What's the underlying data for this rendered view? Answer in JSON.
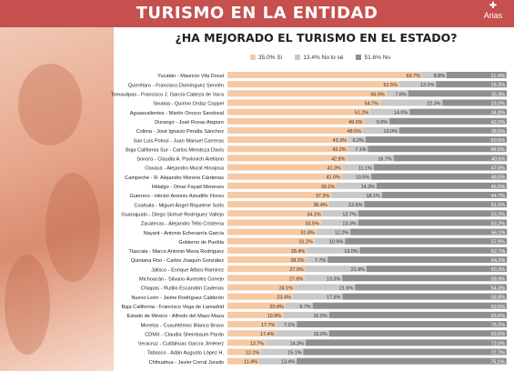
{
  "header": {
    "title": "TURISMO EN LA ENTIDAD",
    "logo_text": "Arias"
  },
  "colors": {
    "header": "#c5504e",
    "si": "#f6c9a3",
    "no_se": "#c9c9c9",
    "no": "#8f8f8f"
  },
  "chart_data": {
    "type": "bar",
    "stacked": true,
    "orientation": "horizontal",
    "title": "¿HA MEJORADO EL TURISMO EN EL ESTADO?",
    "legend": [
      "35.0% Sí",
      "13.4% No lo sé",
      "51.6% No"
    ],
    "legend_position": "top",
    "categories": [
      "Yucatán - Mauricio Vila Dosal",
      "Querétaro - Francisco Domínguez Servién",
      "Tamaulipas - Francisco J. García Cabeza de Vaca",
      "Sinaloa - Quirino Ordaz Coppel",
      "Aguascalientes - Martín Orozco Sandoval",
      "Durango - José Rosas Aispuro",
      "Colima - José Ignacio Peralta Sánchez",
      "San Luis Potosí - Juan Manuel Carreras",
      "Baja California Sur - Carlos Mendoza Davis",
      "Sonora - Claudia A. Pavlovich Arellano",
      "Oaxaca - Alejandro Murat Hinojosa",
      "Campeche - R. Alejandro Moreno Cárdenas",
      "Hidalgo - Omar Fayad Meneses",
      "Guerrero - Héctor Antonio Astudillo Flores",
      "Coahuila - Miguel Ángel Riquelme Solís",
      "Guanajuato - Diego Sinhué Rodríguez Vallejo",
      "Zacatecas - Alejandro Tello Cristerna",
      "Nayarit - Antonio Echevarría García",
      "Gobierno de Puebla",
      "Tlaxcala - Marco Antonio Mena Rodríguez",
      "Quintana Roo - Carlos Joaquín González",
      "Jalisco - Enrique Alfaro Ramírez",
      "Michoacán - Silvano Aureoles Conejo",
      "Chiapas - Rutilio Escandón Cadenas",
      "Nuevo León - Jaime Rodríguez Calderón",
      "Baja California - Francisco Vega de Lamadrid",
      "Estado de México - Alfredo del Mazo Maza",
      "Morelos - Cuauhtémoc Blanco Bravo",
      "CDMX - Claudia Sheinbaum Pardo",
      "Veracruz - Cuitláhuac García Jiménez",
      "Tabasco - Adán Augusto López H.",
      "Chihuahua - Javier Corral Jurado"
    ],
    "series": [
      {
        "name": "Sí",
        "values": [
          69.7,
          61.5,
          56.9,
          54.7,
          51.2,
          49.0,
          48.5,
          43.3,
          43.2,
          42.8,
          41.3,
          41.0,
          39.1,
          37.2,
          36.4,
          34.1,
          33.5,
          31.8,
          31.2,
          28.4,
          28.2,
          27.9,
          27.8,
          24.1,
          23.4,
          20.8,
          19.9,
          17.7,
          17.4,
          13.7,
          12.1,
          11.4
        ]
      },
      {
        "name": "No lo sé",
        "values": [
          8.8,
          13.2,
          7.8,
          22.3,
          14.0,
          9.0,
          13.0,
          6.2,
          7.1,
          16.7,
          11.1,
          10.5,
          14.3,
          18.1,
          12.6,
          12.7,
          13.3,
          12.2,
          10.9,
          19.0,
          7.7,
          21.9,
          13.3,
          21.6,
          17.8,
          9.7,
          16.5,
          7.1,
          19.0,
          14.3,
          15.1,
          13.4
        ]
      },
      {
        "name": "No",
        "values": [
          21.4,
          25.3,
          35.3,
          23.0,
          34.8,
          42.0,
          38.5,
          50.5,
          49.6,
          40.6,
          47.6,
          48.5,
          46.6,
          44.7,
          51.0,
          53.2,
          53.2,
          56.1,
          57.9,
          52.7,
          64.2,
          50.2,
          58.9,
          54.3,
          58.8,
          69.5,
          63.6,
          75.2,
          63.6,
          72.0,
          72.7,
          75.1
        ]
      }
    ],
    "value_suffix": "%",
    "xlim": [
      0,
      100
    ]
  }
}
